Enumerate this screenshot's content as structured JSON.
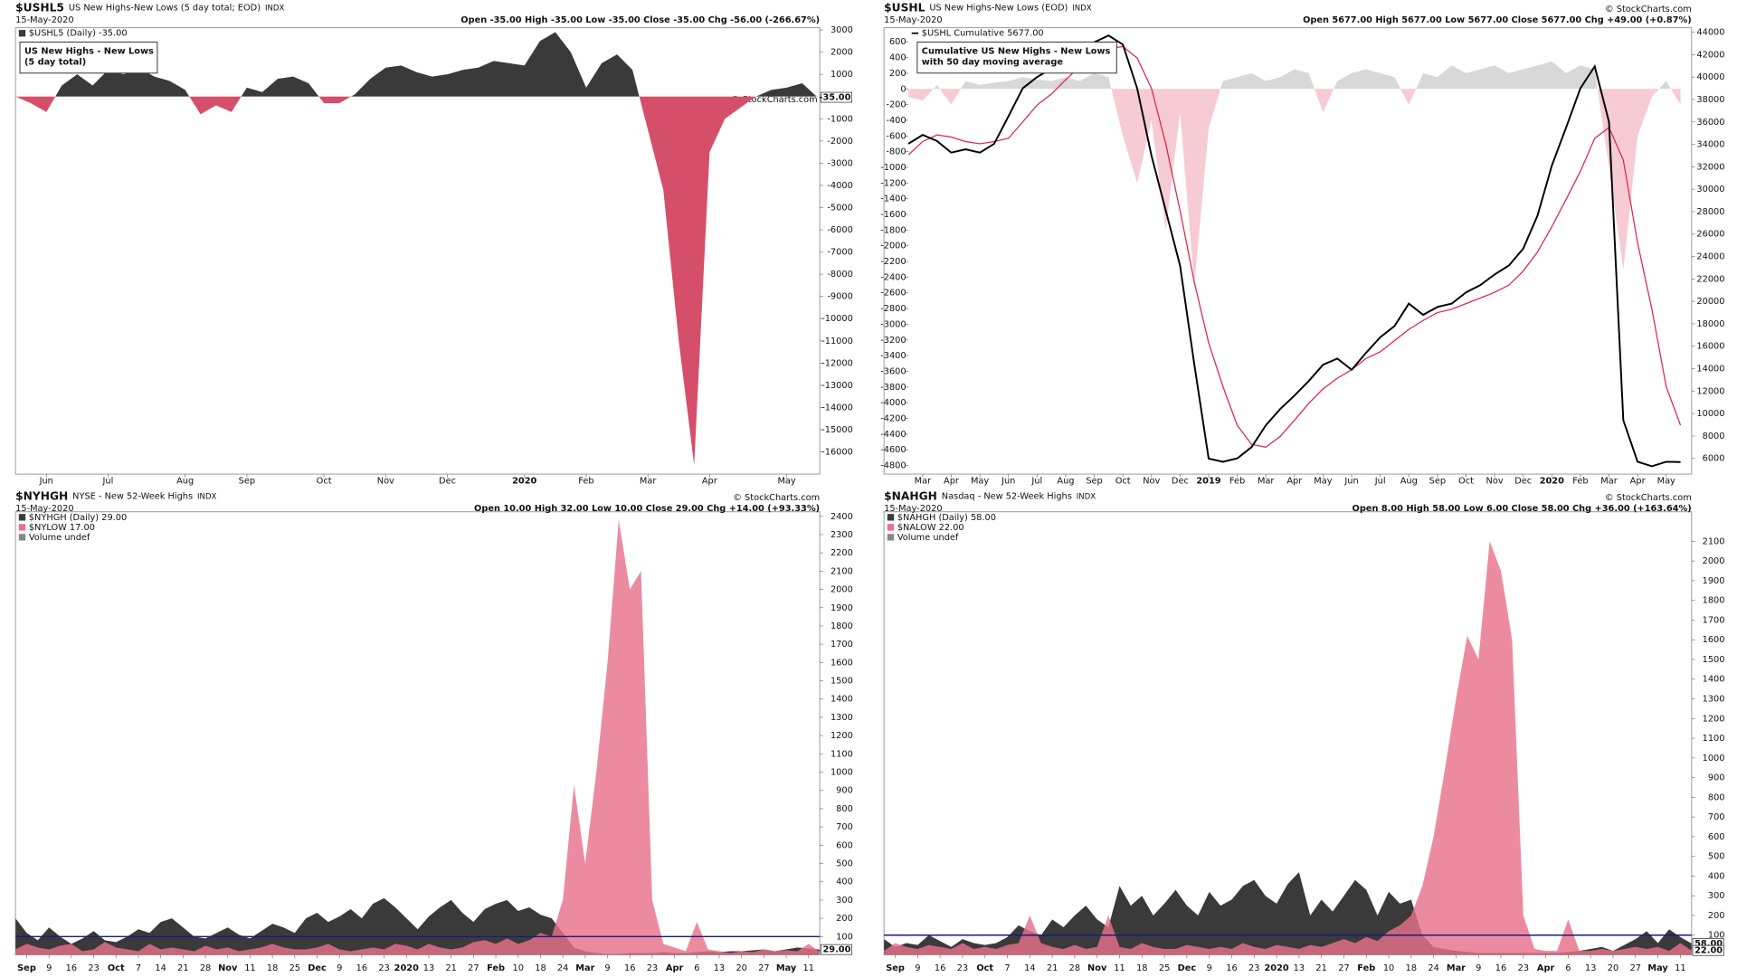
{
  "chart_data": [
    {
      "type": "area",
      "symbol": "$USHL5",
      "title": "US New Highs-New Lows (5 day total; EOD)",
      "exchange": "INDX",
      "date": "15-May-2020",
      "quote": "Open -35.00  High -35.00  Low -35.00  Close -35.00  Chg -56.00 (-266.67%)",
      "copyright": "© StockCharts.com",
      "annotation": [
        "US New Highs - New Lows",
        "(5 day total)"
      ],
      "categories": [
        null,
        null,
        "Jun",
        null,
        null,
        null,
        "Jul",
        null,
        null,
        null,
        null,
        "Aug",
        null,
        null,
        null,
        "Sep",
        null,
        null,
        null,
        null,
        "Oct",
        null,
        null,
        null,
        "Nov",
        null,
        null,
        null,
        "Dec",
        null,
        null,
        null,
        null,
        "2020",
        null,
        null,
        null,
        "Feb",
        null,
        null,
        null,
        "Mar",
        null,
        null,
        null,
        "Apr",
        null,
        null,
        null,
        null,
        "May",
        null,
        null
      ],
      "series": [
        {
          "name": "$USHL5 (Daily) -35.00",
          "color": "#3a3a3a",
          "negative_color": "#d64f6a",
          "last_label": "-35.00",
          "values": [
            0,
            -300,
            -700,
            500,
            1000,
            500,
            1200,
            1000,
            1300,
            900,
            700,
            300,
            -800,
            -400,
            -700,
            400,
            200,
            800,
            900,
            600,
            -300,
            -300,
            100,
            800,
            1300,
            1400,
            1100,
            900,
            1000,
            1200,
            1300,
            1600,
            1500,
            1400,
            2500,
            2900,
            2000,
            400,
            1500,
            1900,
            1200,
            -1500,
            -4200,
            -11000,
            -16600,
            -2500,
            -1000,
            -500,
            0,
            300,
            400,
            600,
            -35
          ]
        }
      ],
      "ylim": [
        -17000,
        3100
      ],
      "yticks": [
        3000,
        2000,
        1000,
        -1000,
        -2000,
        -3000,
        -4000,
        -5000,
        -6000,
        -7000,
        -8000,
        -9000,
        -10000,
        -11000,
        -12000,
        -13000,
        -14000,
        -15000,
        -16000
      ]
    },
    {
      "type": "line",
      "symbol": "$USHL",
      "title": "US New Highs-New Lows (EOD)",
      "exchange": "INDX",
      "date": "15-May-2020",
      "quote": "Open 5677.00  High 5677.00  Low 5677.00  Close 5677.00  Chg +49.00 (+0.87%)",
      "copyright": "© StockCharts.com",
      "annotation": [
        "Cumulative US New Highs - New Lows",
        "with 50 day moving average"
      ],
      "categories": [
        null,
        "Mar",
        null,
        "Apr",
        null,
        "May",
        null,
        "Jun",
        null,
        "Jul",
        null,
        "Aug",
        null,
        "Sep",
        null,
        "Oct",
        null,
        "Nov",
        null,
        "Dec",
        null,
        "2019",
        null,
        "Feb",
        null,
        "Mar",
        null,
        "Apr",
        null,
        "May",
        null,
        "Jun",
        null,
        "Jul",
        null,
        "Aug",
        null,
        "Sep",
        null,
        "Oct",
        null,
        "Nov",
        null,
        "Dec",
        null,
        "2020",
        null,
        "Feb",
        null,
        "Mar",
        null,
        "Apr",
        null,
        "May",
        null
      ],
      "series": [
        {
          "style": "area",
          "color": "#d8d8d8",
          "negative_color": "#f6cbd3",
          "values": [
            -100,
            -150,
            50,
            -200,
            100,
            50,
            80,
            100,
            150,
            120,
            100,
            150,
            100,
            200,
            150,
            -600,
            -1200,
            -400,
            -1800,
            -300,
            -2500,
            -500,
            100,
            150,
            200,
            100,
            150,
            250,
            200,
            -300,
            100,
            200,
            250,
            200,
            150,
            -200,
            200,
            150,
            300,
            200,
            250,
            300,
            200,
            250,
            300,
            350,
            200,
            300,
            250,
            -1000,
            -2300,
            -600,
            -100,
            100,
            -200
          ]
        },
        {
          "axis": "y2",
          "color": "#e0204a",
          "values": [
            33060,
            34250,
            34840,
            34650,
            34250,
            34050,
            34250,
            34540,
            36000,
            37500,
            38480,
            39760,
            40950,
            41930,
            42520,
            42720,
            41700,
            39000,
            34050,
            28100,
            21700,
            16300,
            12400,
            8950,
            7250,
            7000,
            7950,
            9400,
            10900,
            12200,
            13150,
            13900,
            14900,
            15500,
            16500,
            17500,
            18300,
            19000,
            19300,
            19800,
            20300,
            20800,
            21450,
            22700,
            24400,
            26650,
            29100,
            31600,
            34540,
            35500,
            32600,
            25200,
            19300,
            12400,
            8950
          ]
        },
        {
          "name": "$USHL Cumulative 5677.00",
          "axis": "y2",
          "color": "#000000",
          "values": [
            34050,
            34840,
            34300,
            33260,
            33560,
            33260,
            34050,
            36500,
            39000,
            40000,
            40750,
            41440,
            42420,
            43100,
            43700,
            42900,
            39000,
            33000,
            28100,
            23200,
            14350,
            5980,
            5700,
            6000,
            7000,
            8950,
            10400,
            11600,
            12900,
            14350,
            14900,
            13900,
            15400,
            16800,
            17800,
            19800,
            18800,
            19500,
            19800,
            20800,
            21450,
            22400,
            23200,
            24700,
            27650,
            32100,
            35500,
            39000,
            40950,
            36000,
            9400,
            5700,
            5300,
            5700,
            5677
          ]
        }
      ],
      "ylim": [
        -4910,
        780
      ],
      "yticks": [
        600,
        400,
        200,
        0,
        -200,
        -400,
        -600,
        -800,
        -1000,
        -1200,
        -1400,
        -1600,
        -1800,
        -2000,
        -2200,
        -2400,
        -2600,
        -2800,
        -3000,
        -3200,
        -3400,
        -3600,
        -3800,
        -4000,
        -4200,
        -4400,
        -4600,
        -4800
      ],
      "y2lim": [
        4600,
        44400
      ],
      "y2ticks": [
        44000,
        42000,
        40000,
        38000,
        36000,
        34000,
        32000,
        30000,
        28000,
        26000,
        24000,
        22000,
        20000,
        18000,
        16000,
        14000,
        12000,
        10000,
        8000,
        6000
      ]
    },
    {
      "type": "area",
      "symbol": "$NYHGH",
      "title": "NYSE - New 52-Week Highs",
      "exchange": "INDX",
      "date": "15-May-2020",
      "quote": "Open 10.00  High 32.00  Low 10.00  Close 29.00  Chg +14.00 (+93.33%)",
      "copyright": "© StockCharts.com",
      "legend_note": "Volume undef",
      "bold_month_labels": true,
      "categories": [
        null,
        "Sep",
        null,
        "9",
        null,
        "16",
        null,
        "23",
        null,
        "Oct",
        null,
        "7",
        null,
        "14",
        null,
        "21",
        null,
        "28",
        null,
        "Nov",
        null,
        "11",
        null,
        "18",
        null,
        "25",
        null,
        "Dec",
        null,
        "9",
        null,
        "16",
        null,
        "23",
        null,
        "2020",
        null,
        "13",
        null,
        "21",
        null,
        "27",
        null,
        "Feb",
        null,
        "10",
        null,
        "18",
        null,
        "24",
        null,
        "Mar",
        null,
        "9",
        null,
        "16",
        null,
        "23",
        null,
        "Apr",
        null,
        "6",
        null,
        "13",
        null,
        "20",
        null,
        "27",
        null,
        "May",
        null,
        "11",
        null
      ],
      "series": [
        {
          "name": "$NYHGH (Daily) 29.00",
          "color": "#3a3a3a",
          "last_label": "29.00",
          "values": [
            200,
            120,
            80,
            150,
            100,
            60,
            90,
            130,
            80,
            70,
            100,
            140,
            120,
            180,
            200,
            150,
            100,
            90,
            120,
            150,
            110,
            90,
            130,
            170,
            150,
            120,
            200,
            230,
            180,
            210,
            250,
            200,
            280,
            310,
            260,
            200,
            140,
            210,
            260,
            300,
            230,
            180,
            250,
            280,
            300,
            240,
            260,
            220,
            200,
            120,
            40,
            20,
            10,
            5,
            5,
            10,
            10,
            10,
            15,
            10,
            10,
            15,
            20,
            15,
            20,
            20,
            25,
            30,
            20,
            30,
            40,
            35,
            29
          ]
        },
        {
          "name": "$NYLOW 17.00",
          "color": "#e8718a",
          "values": [
            30,
            60,
            40,
            30,
            50,
            60,
            20,
            30,
            70,
            40,
            30,
            20,
            60,
            30,
            40,
            30,
            20,
            50,
            30,
            40,
            20,
            30,
            40,
            60,
            40,
            30,
            30,
            40,
            60,
            30,
            20,
            30,
            40,
            30,
            60,
            50,
            30,
            60,
            40,
            30,
            40,
            70,
            80,
            60,
            90,
            60,
            80,
            120,
            100,
            300,
            930,
            500,
            1000,
            1600,
            2380,
            2000,
            2100,
            300,
            60,
            40,
            20,
            180,
            30,
            20,
            10,
            20,
            15,
            30,
            20,
            25,
            20,
            60,
            17
          ]
        }
      ],
      "reference_line": {
        "value": 100,
        "color": "#1a1a80"
      },
      "ylim": [
        0,
        2425
      ],
      "yticks": [
        2400,
        2300,
        2200,
        2100,
        2000,
        1900,
        1800,
        1700,
        1600,
        1500,
        1400,
        1300,
        1200,
        1100,
        1000,
        900,
        800,
        700,
        600,
        500,
        400,
        300,
        200,
        100
      ]
    },
    {
      "type": "area",
      "symbol": "$NAHGH",
      "title": "Nasdaq - New 52-Week Highs",
      "exchange": "INDX",
      "date": "15-May-2020",
      "quote": "Open 8.00  High 58.00  Low 6.00  Close 58.00  Chg +36.00 (+163.64%)",
      "copyright": "© StockCharts.com",
      "legend_note": "Volume undef",
      "bold_month_labels": true,
      "categories": [
        null,
        "Sep",
        null,
        "9",
        null,
        "16",
        null,
        "23",
        null,
        "Oct",
        null,
        "7",
        null,
        "14",
        null,
        "21",
        null,
        "28",
        null,
        "Nov",
        null,
        "11",
        null,
        "18",
        null,
        "25",
        null,
        "Dec",
        null,
        "9",
        null,
        "16",
        null,
        "23",
        null,
        "2020",
        null,
        "13",
        null,
        "21",
        null,
        "27",
        null,
        "Feb",
        null,
        "10",
        null,
        "18",
        null,
        "24",
        null,
        "Mar",
        null,
        "9",
        null,
        "16",
        null,
        "23",
        null,
        "Apr",
        null,
        "6",
        null,
        "13",
        null,
        "20",
        null,
        "27",
        null,
        "May",
        null,
        "11",
        null
      ],
      "series": [
        {
          "name": "$NAHGH (Daily) 58.00",
          "color": "#3a3a3a",
          "last_label": "58.00",
          "values": [
            80,
            40,
            60,
            50,
            100,
            70,
            40,
            80,
            60,
            50,
            60,
            90,
            150,
            120,
            100,
            180,
            140,
            200,
            250,
            180,
            140,
            350,
            250,
            300,
            200,
            260,
            330,
            250,
            200,
            320,
            250,
            280,
            350,
            380,
            300,
            260,
            360,
            420,
            200,
            280,
            220,
            300,
            380,
            330,
            200,
            320,
            260,
            280,
            100,
            40,
            30,
            20,
            15,
            10,
            10,
            10,
            10,
            10,
            10,
            10,
            10,
            15,
            20,
            30,
            40,
            20,
            50,
            80,
            120,
            60,
            130,
            90,
            58
          ]
        },
        {
          "name": "$NALOW 22.00",
          "color": "#e8718a",
          "last_label": "22.00",
          "values": [
            20,
            60,
            40,
            30,
            50,
            40,
            30,
            60,
            30,
            40,
            30,
            50,
            60,
            200,
            60,
            40,
            30,
            50,
            30,
            40,
            200,
            40,
            30,
            60,
            40,
            30,
            30,
            50,
            40,
            30,
            40,
            30,
            60,
            40,
            30,
            50,
            40,
            30,
            50,
            40,
            60,
            80,
            60,
            90,
            70,
            120,
            150,
            200,
            350,
            600,
            940,
            1300,
            1620,
            1500,
            2100,
            1950,
            1600,
            200,
            30,
            20,
            20,
            180,
            20,
            20,
            30,
            20,
            30,
            40,
            30,
            40,
            20,
            60,
            22
          ]
        }
      ],
      "reference_line": {
        "value": 100,
        "color": "#1a1a80"
      },
      "ylim": [
        0,
        2250
      ],
      "yticks": [
        2100,
        2000,
        1900,
        1800,
        1700,
        1600,
        1500,
        1400,
        1300,
        1200,
        1100,
        1000,
        900,
        800,
        700,
        600,
        500,
        400,
        300,
        200,
        100
      ]
    }
  ]
}
